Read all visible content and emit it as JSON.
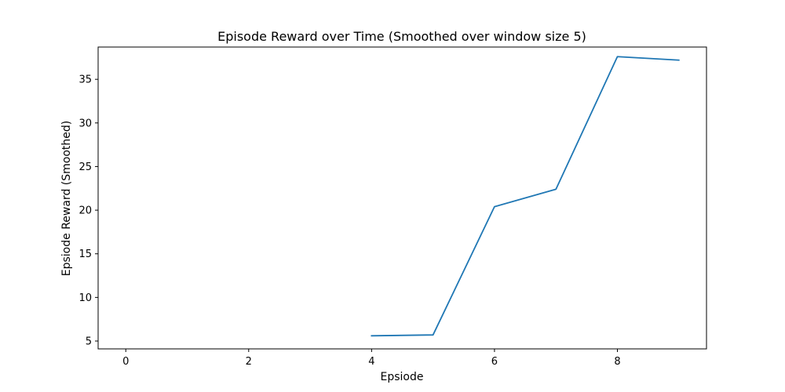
{
  "chart_data": {
    "type": "line",
    "title": "Episode Reward over Time (Smoothed over window size 5)",
    "xlabel": "Epsiode",
    "ylabel": "Epsiode Reward (Smoothed)",
    "xlim": [
      -0.45,
      9.45
    ],
    "ylim": [
      4.1,
      38.7
    ],
    "xticks": [
      0,
      2,
      4,
      6,
      8
    ],
    "yticks": [
      5,
      10,
      15,
      20,
      25,
      30,
      35
    ],
    "grid": false,
    "series": [
      {
        "color": "#1f77b4",
        "x": [
          4,
          5,
          6,
          7,
          8,
          9
        ],
        "y": [
          5.6,
          5.7,
          20.4,
          22.4,
          37.6,
          37.2
        ]
      }
    ]
  }
}
